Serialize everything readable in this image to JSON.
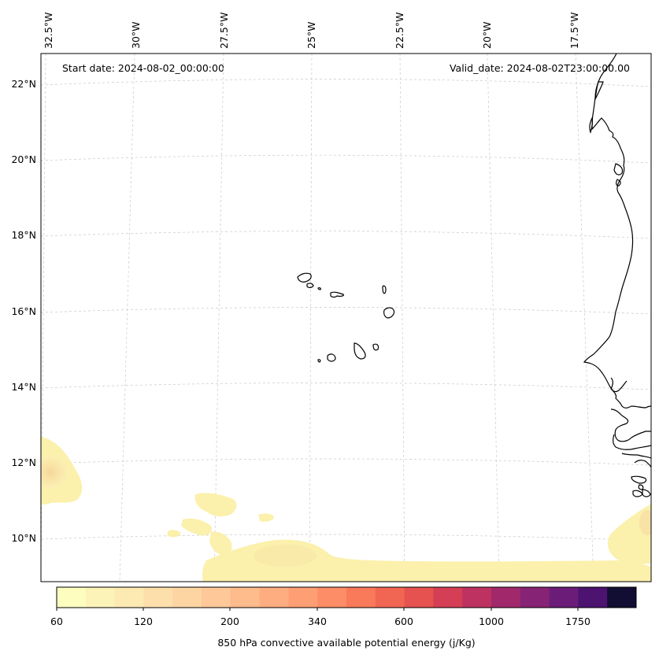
{
  "header": {
    "start_date": "Start date: 2024-08-02_00:00:00",
    "valid_date": "Valid_date: 2024-08-02T23:00:00.00"
  },
  "longitude_labels": [
    "32.5°W",
    "30°W",
    "27.5°W",
    "25°W",
    "22.5°W",
    "20°W",
    "17.5°W"
  ],
  "latitude_labels": [
    "22°N",
    "20°N",
    "18°N",
    "16°N",
    "14°N",
    "12°N",
    "10°N"
  ],
  "colorbar": {
    "title": "850 hPa convective available potential energy (j/Kg)",
    "tick_labels": [
      "60",
      "120",
      "200",
      "340",
      "600",
      "1000",
      "1750"
    ],
    "colors": [
      "#fcfdbf",
      "#fcf3b9",
      "#fde9b2",
      "#fddfab",
      "#fdd5a2",
      "#fec898",
      "#febb8c",
      "#fead80",
      "#fe9e74",
      "#fc8d66",
      "#f87a5a",
      "#f16652",
      "#e5524f",
      "#d43f55",
      "#bd3261",
      "#a2286c",
      "#872374",
      "#6a1c78",
      "#4d1370",
      "#120d32"
    ]
  },
  "colors": {
    "cape_fill": "#fbf0a8",
    "cape_core": "#fbd890",
    "coastline": "#000000",
    "gridline": "#c8c8c8"
  }
}
